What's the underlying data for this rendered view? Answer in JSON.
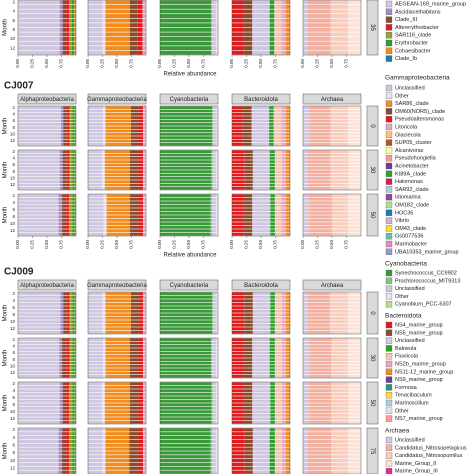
{
  "chart_data": {
    "type": "stacked-bar-facets",
    "xlabel": "Relative abundance",
    "ylabel": "Month",
    "xlim": [
      0,
      1
    ],
    "xticks": [
      {
        "value": 0,
        "label": "0.00"
      },
      {
        "value": 0.25,
        "label": "0.25"
      },
      {
        "value": 0.5,
        "label": "0.50"
      },
      {
        "value": 0.75,
        "label": "0.75"
      }
    ],
    "months": [
      "2",
      "4",
      "6",
      "8",
      "10",
      "12"
    ],
    "groups": [
      "Alphaproteobacteria",
      "Gammaproteobacteria",
      "Cyanobacteria",
      "Bacteroidota",
      "Archaea"
    ],
    "legend": [
      {
        "entries": [
          {
            "name": "AEGEAN-169_marine_group",
            "color": "#cfc6e0"
          },
          {
            "name": "Ascidiaceihabitans",
            "color": "#a78bc4"
          },
          {
            "name": "Clade_III",
            "color": "#8c4a2b"
          },
          {
            "name": "Altererythrobacter",
            "color": "#e31a1c"
          },
          {
            "name": "SAR116_clade",
            "color": "#9aa02a"
          },
          {
            "name": "Erythrobacter",
            "color": "#2ca02c"
          },
          {
            "name": "Cohaesibacter",
            "color": "#f28c1c"
          },
          {
            "name": "Clade_Ib",
            "color": "#1f78b4"
          }
        ]
      },
      {
        "title": "Gammaproteobacteria",
        "entries": [
          {
            "name": "Unclassified",
            "color": "#cfc6e0"
          },
          {
            "name": "Other",
            "color": "#e8e0ee"
          },
          {
            "name": "SAR86_clade",
            "color": "#f28c1c"
          },
          {
            "name": "OM60(NOR5)_clade",
            "color": "#8c4a2b"
          },
          {
            "name": "Pseudoalteromonas",
            "color": "#e31a1c"
          },
          {
            "name": "Litoricola",
            "color": "#e7a6c4"
          },
          {
            "name": "Glaciecola",
            "color": "#fdbf6f"
          },
          {
            "name": "SUP05_cluster",
            "color": "#b15928"
          },
          {
            "name": "Alcanivorax",
            "color": "#ffff99"
          },
          {
            "name": "Pseudohongiella",
            "color": "#fb9a99"
          },
          {
            "name": "Acinetobacter",
            "color": "#6a3d9a"
          },
          {
            "name": "KI89A_clade",
            "color": "#33a02c"
          },
          {
            "name": "Halomonas",
            "color": "#d81b60"
          },
          {
            "name": "SAR92_clade",
            "color": "#a6cee3"
          },
          {
            "name": "Idiomarina",
            "color": "#8e44ad"
          },
          {
            "name": "OM182_clade",
            "color": "#b2df8a"
          },
          {
            "name": "HOC36",
            "color": "#1f78b4"
          },
          {
            "name": "Vibrio",
            "color": "#cab2d6"
          },
          {
            "name": "OM43_clade",
            "color": "#ffd92f"
          },
          {
            "name": "Gs0077536",
            "color": "#66c2a5"
          },
          {
            "name": "Marinobacter",
            "color": "#e78ac3"
          },
          {
            "name": "UBA10353_marine_group",
            "color": "#8da0cb"
          }
        ]
      },
      {
        "title": "Cyanobacteria",
        "entries": [
          {
            "name": "Synechococcus_CC9902",
            "color": "#3a9a3a"
          },
          {
            "name": "Prochlorococcus_MIT9313",
            "color": "#7fc97f"
          },
          {
            "name": "Unclassified",
            "color": "#cfc6e0"
          },
          {
            "name": "Other",
            "color": "#e8e0ee"
          },
          {
            "name": "Cyanobium_PCC-6307",
            "color": "#b2df8a"
          }
        ]
      },
      {
        "title": "Bacteroidota",
        "entries": [
          {
            "name": "NS4_marine_group",
            "color": "#e31a1c"
          },
          {
            "name": "NS5_marine_group",
            "color": "#8c4a2b"
          },
          {
            "name": "Unclassified",
            "color": "#cfc6e0"
          },
          {
            "name": "Balneola",
            "color": "#2ca02c"
          },
          {
            "name": "Fluviicola",
            "color": "#f5c6b0"
          },
          {
            "name": "NS2b_marine_group",
            "color": "#e7a6c4"
          },
          {
            "name": "NS11-12_marine_group",
            "color": "#f28c1c"
          },
          {
            "name": "NS9_marine_group",
            "color": "#6a3d9a"
          },
          {
            "name": "Formosa",
            "color": "#1b9e77"
          },
          {
            "name": "Tenacibaculum",
            "color": "#ffd92f"
          },
          {
            "name": "Marinoscillum",
            "color": "#a6cee3"
          },
          {
            "name": "Other",
            "color": "#e8e0ee"
          },
          {
            "name": "NS7_marine_group",
            "color": "#fb9a99"
          }
        ]
      },
      {
        "title": "Archaea",
        "entries": [
          {
            "name": "Unclassified",
            "color": "#cfc6e0"
          },
          {
            "name": "Candidatus_Nitrosopelagicus",
            "color": "#f3b0a0"
          },
          {
            "name": "Candidatus_Nitrosopumilus",
            "color": "#f8cdbd"
          },
          {
            "name": "Marine_Group_II",
            "color": "#fbe3d8"
          },
          {
            "name": "Marine_Group_III",
            "color": "#e7298a"
          }
        ]
      }
    ],
    "sites": [
      {
        "facets": [
          {
            "label": "35",
            "values": [
              [
                0.72,
                0.05,
                0.06,
                0.05,
                0.05,
                0.04,
                0.02,
                0.01
              ],
              [
                0.25,
                0.05,
                0.42,
                0.14,
                0.08,
                0.06
              ],
              [
                0.88,
                0.02,
                0.07,
                0.03
              ],
              [
                0.2,
                0.15,
                0.3,
                0.08,
                0.12,
                0.08,
                0.07
              ],
              [
                0.08,
                0.4,
                0.3,
                0.22
              ]
            ]
          }
        ]
      },
      {
        "title": "CJ007",
        "facets": [
          {
            "label": "0",
            "values": [
              [
                0.74,
                0.04,
                0.06,
                0.05,
                0.05,
                0.04,
                0.01,
                0.01
              ],
              [
                0.26,
                0.04,
                0.44,
                0.13,
                0.08,
                0.05
              ],
              [
                0.9,
                0.02,
                0.06,
                0.02
              ],
              [
                0.18,
                0.16,
                0.3,
                0.08,
                0.13,
                0.08,
                0.07
              ],
              [
                0.1,
                0.38,
                0.3,
                0.22
              ]
            ]
          },
          {
            "label": "30",
            "values": [
              [
                0.72,
                0.05,
                0.07,
                0.05,
                0.05,
                0.04,
                0.01,
                0.01
              ],
              [
                0.24,
                0.05,
                0.43,
                0.15,
                0.08,
                0.05
              ],
              [
                0.89,
                0.02,
                0.06,
                0.03
              ],
              [
                0.22,
                0.14,
                0.29,
                0.09,
                0.12,
                0.07,
                0.07
              ],
              [
                0.08,
                0.4,
                0.31,
                0.21
              ]
            ]
          },
          {
            "label": "50",
            "values": [
              [
                0.7,
                0.06,
                0.07,
                0.05,
                0.06,
                0.04,
                0.01,
                0.01
              ],
              [
                0.27,
                0.05,
                0.4,
                0.15,
                0.08,
                0.05
              ],
              [
                0.87,
                0.03,
                0.07,
                0.03
              ],
              [
                0.2,
                0.15,
                0.31,
                0.08,
                0.11,
                0.08,
                0.07
              ],
              [
                0.09,
                0.41,
                0.28,
                0.22
              ]
            ]
          }
        ]
      },
      {
        "title": "CJ009",
        "facets": [
          {
            "label": "0",
            "values": [
              [
                0.73,
                0.05,
                0.06,
                0.05,
                0.05,
                0.04,
                0.01,
                0.01
              ],
              [
                0.25,
                0.05,
                0.44,
                0.14,
                0.07,
                0.05
              ],
              [
                0.9,
                0.02,
                0.06,
                0.02
              ],
              [
                0.21,
                0.15,
                0.3,
                0.08,
                0.12,
                0.07,
                0.07
              ],
              [
                0.08,
                0.39,
                0.31,
                0.22
              ]
            ]
          },
          {
            "label": "30",
            "values": [
              [
                0.71,
                0.05,
                0.07,
                0.06,
                0.05,
                0.04,
                0.01,
                0.01
              ],
              [
                0.26,
                0.04,
                0.42,
                0.15,
                0.08,
                0.05
              ],
              [
                0.88,
                0.02,
                0.07,
                0.03
              ],
              [
                0.19,
                0.16,
                0.3,
                0.09,
                0.12,
                0.07,
                0.07
              ],
              [
                0.1,
                0.39,
                0.29,
                0.22
              ]
            ]
          },
          {
            "label": "50",
            "values": [
              [
                0.72,
                0.05,
                0.06,
                0.05,
                0.06,
                0.04,
                0.01,
                0.01
              ],
              [
                0.24,
                0.05,
                0.43,
                0.15,
                0.08,
                0.05
              ],
              [
                0.89,
                0.02,
                0.06,
                0.03
              ],
              [
                0.2,
                0.15,
                0.31,
                0.08,
                0.12,
                0.07,
                0.07
              ],
              [
                0.09,
                0.4,
                0.3,
                0.21
              ]
            ]
          },
          {
            "label": "75",
            "values": [
              [
                0.7,
                0.06,
                0.07,
                0.05,
                0.06,
                0.04,
                0.01,
                0.01
              ],
              [
                0.25,
                0.05,
                0.41,
                0.16,
                0.08,
                0.05
              ],
              [
                0.87,
                0.03,
                0.07,
                0.03
              ],
              [
                0.22,
                0.14,
                0.29,
                0.09,
                0.12,
                0.07,
                0.07
              ],
              [
                0.08,
                0.41,
                0.29,
                0.22
              ]
            ]
          }
        ]
      }
    ]
  }
}
